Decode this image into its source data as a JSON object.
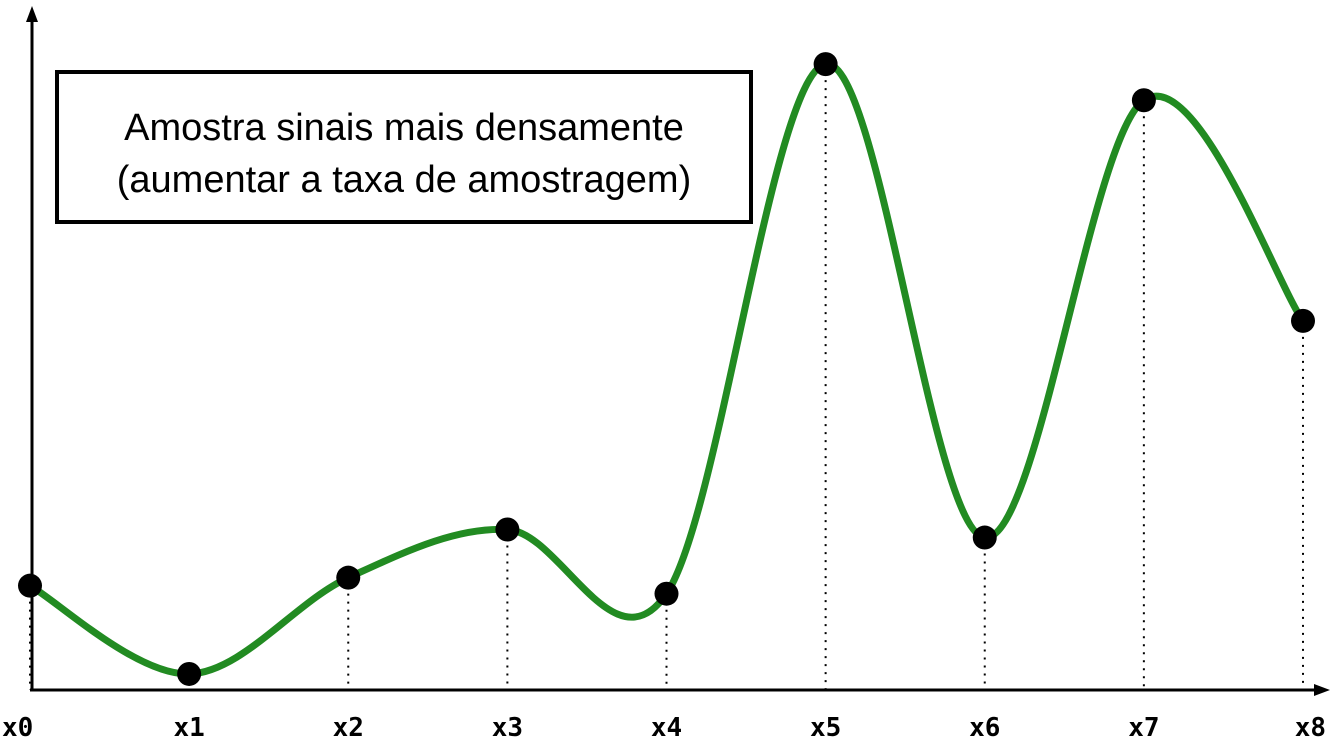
{
  "annotation": {
    "line1": "Amostra sinais mais densamente",
    "line2": "(aumentar a taxa de amostragem)"
  },
  "chart_data": {
    "type": "line",
    "categories": [
      "x0",
      "x1",
      "x2",
      "x3",
      "x4",
      "x5",
      "x6",
      "x7",
      "x8"
    ],
    "values": [
      1.3,
      0.2,
      1.4,
      2.0,
      1.2,
      7.8,
      1.9,
      7.35,
      4.6
    ],
    "ylim": [
      0,
      8.3
    ],
    "grid": false,
    "markers": true,
    "vertical_guides": "dotted",
    "colors": {
      "line": "#228b22",
      "marker": "#000000",
      "axis": "#000000"
    }
  }
}
